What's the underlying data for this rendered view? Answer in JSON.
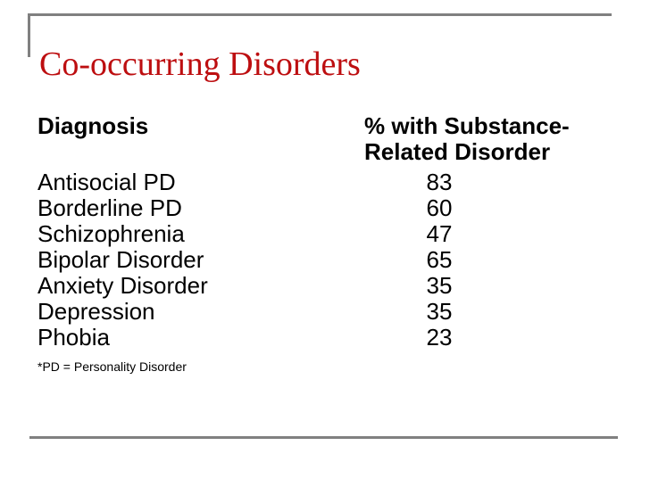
{
  "slide": {
    "title": "Co-occurring Disorders"
  },
  "colors": {
    "title_red": "#bd0e10",
    "line_gray": "#808080",
    "body_text": "#000000",
    "background": "#ffffff"
  },
  "table": {
    "col1_header": "Diagnosis",
    "col2_header_line1": "% with Substance-",
    "col2_header_line2": "Related Disorder",
    "rows": [
      {
        "diagnosis": "Antisocial PD",
        "percent": "83"
      },
      {
        "diagnosis": "Borderline PD",
        "percent": "60"
      },
      {
        "diagnosis": "Schizophrenia",
        "percent": "47"
      },
      {
        "diagnosis": "Bipolar Disorder",
        "percent": "65"
      },
      {
        "diagnosis": "Anxiety Disorder",
        "percent": "35"
      },
      {
        "diagnosis": "Depression",
        "percent": "35"
      },
      {
        "diagnosis": "Phobia",
        "percent": "23"
      }
    ]
  },
  "footnote": "*PD = Personality Disorder"
}
